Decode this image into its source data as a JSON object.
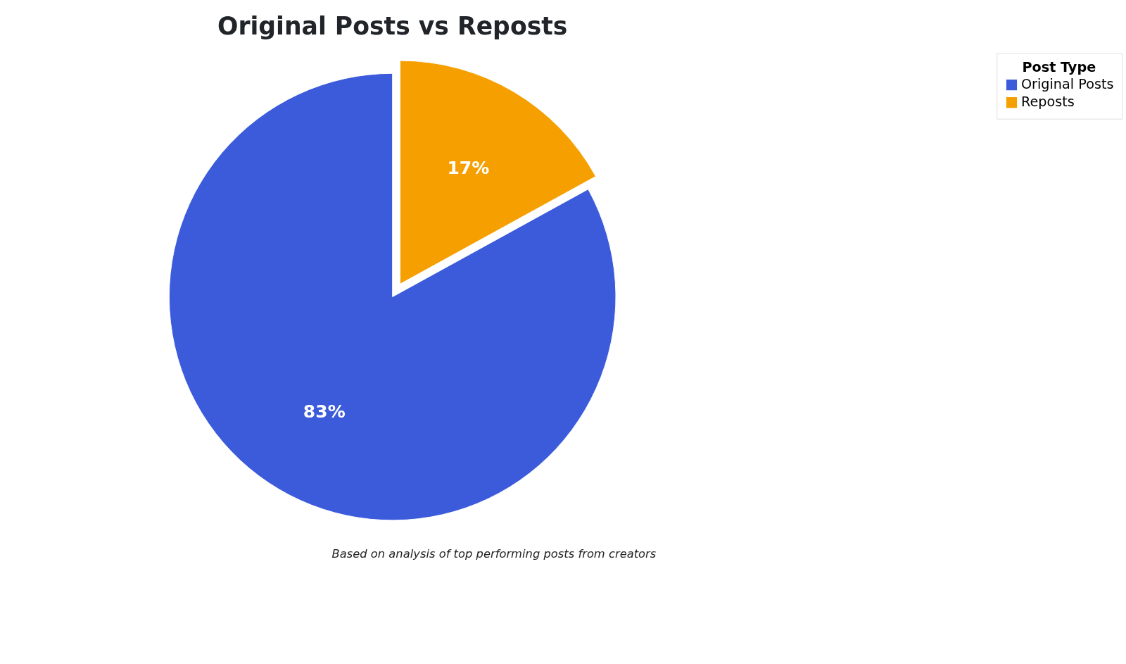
{
  "chart_data": {
    "type": "pie",
    "title": "Original Posts vs Reposts",
    "categories": [
      "Original Posts",
      "Reposts"
    ],
    "values": [
      83,
      17
    ],
    "colors": [
      "#3b5bdb",
      "#f59f00"
    ],
    "value_labels": [
      "83%",
      "17%"
    ],
    "legend_title": "Post Type",
    "legend": "right",
    "annotations": [
      "Based on analysis of top performing posts from creators"
    ]
  }
}
